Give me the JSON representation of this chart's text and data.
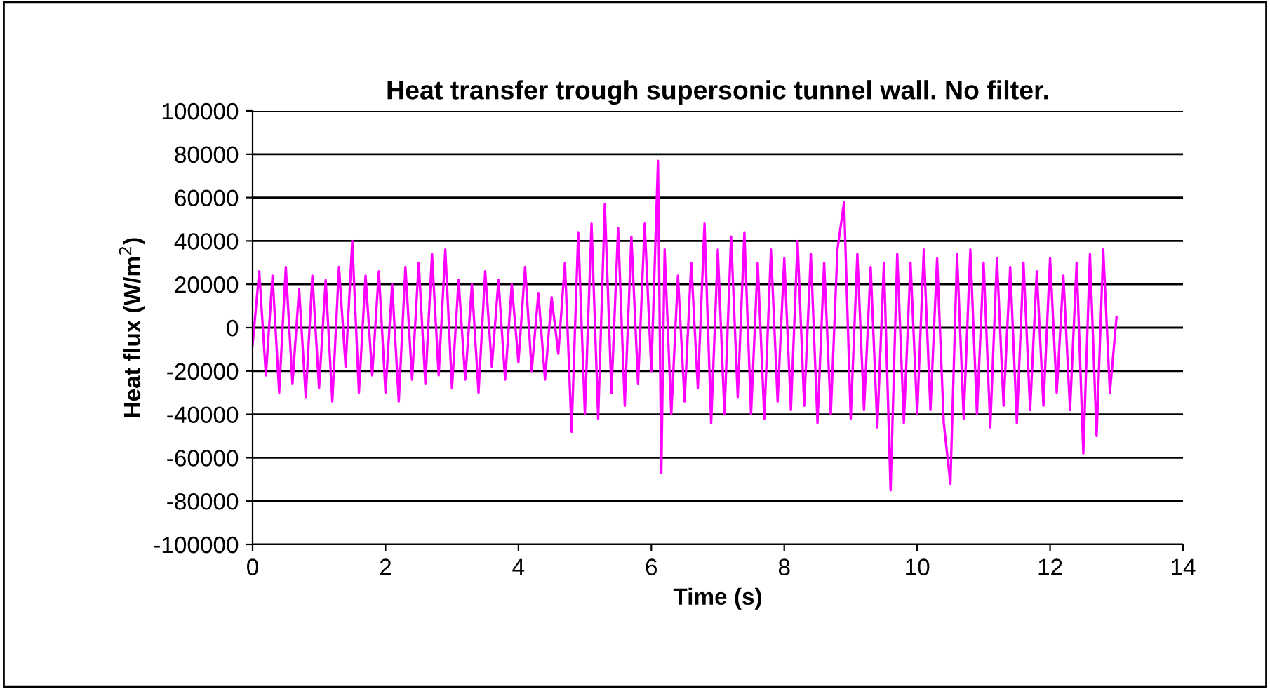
{
  "chart_data": {
    "type": "line",
    "title": "Heat transfer trough supersonic tunnel wall. No filter.",
    "xlabel": "Time (s)",
    "ylabel": "Heat flux (W/m$^{2}$)",
    "x": [
      0,
      0.1,
      0.2,
      0.3,
      0.4,
      0.5,
      0.6,
      0.7,
      0.8,
      0.9,
      1.0,
      1.1,
      1.2,
      1.3,
      1.4,
      1.5,
      1.6,
      1.7,
      1.8,
      1.9,
      2.0,
      2.1,
      2.2,
      2.3,
      2.4,
      2.5,
      2.6,
      2.7,
      2.8,
      2.9,
      3.0,
      3.1,
      3.2,
      3.3,
      3.4,
      3.5,
      3.6,
      3.7,
      3.8,
      3.9,
      4.0,
      4.1,
      4.2,
      4.3,
      4.4,
      4.5,
      4.6,
      4.7,
      4.8,
      4.9,
      5.0,
      5.1,
      5.2,
      5.3,
      5.4,
      5.5,
      5.6,
      5.7,
      5.8,
      5.9,
      6.0,
      6.1,
      6.15,
      6.2,
      6.3,
      6.4,
      6.5,
      6.6,
      6.7,
      6.8,
      6.9,
      7.0,
      7.1,
      7.2,
      7.3,
      7.4,
      7.5,
      7.6,
      7.7,
      7.8,
      7.9,
      8.0,
      8.1,
      8.2,
      8.3,
      8.4,
      8.5,
      8.6,
      8.7,
      8.8,
      8.9,
      9.0,
      9.1,
      9.2,
      9.3,
      9.4,
      9.5,
      9.6,
      9.7,
      9.8,
      9.9,
      10.0,
      10.1,
      10.2,
      10.3,
      10.4,
      10.5,
      10.6,
      10.7,
      10.8,
      10.9,
      11.0,
      11.1,
      11.2,
      11.3,
      11.4,
      11.5,
      11.6,
      11.7,
      11.8,
      11.9,
      12.0,
      12.1,
      12.2,
      12.3,
      12.4,
      12.5,
      12.6,
      12.7,
      12.8,
      12.9,
      13.0
    ],
    "series": [
      {
        "color": "#ff00ff",
        "values": [
          -8000,
          26000,
          -22000,
          24000,
          -30000,
          28000,
          -26000,
          18000,
          -32000,
          24000,
          -28000,
          22000,
          -34000,
          28000,
          -18000,
          40000,
          -30000,
          24000,
          -22000,
          26000,
          -30000,
          20000,
          -34000,
          28000,
          -24000,
          30000,
          -26000,
          34000,
          -22000,
          36000,
          -28000,
          22000,
          -24000,
          20000,
          -30000,
          26000,
          -18000,
          22000,
          -24000,
          20000,
          -16000,
          28000,
          -20000,
          16000,
          -24000,
          14000,
          -12000,
          30000,
          -48000,
          44000,
          -40000,
          48000,
          -42000,
          57000,
          -30000,
          46000,
          -36000,
          42000,
          -26000,
          48000,
          -20000,
          77000,
          -67000,
          36000,
          -40000,
          24000,
          -34000,
          30000,
          -28000,
          48000,
          -44000,
          36000,
          -40000,
          42000,
          -32000,
          44000,
          -40000,
          30000,
          -42000,
          36000,
          -34000,
          32000,
          -38000,
          40000,
          -36000,
          34000,
          -44000,
          30000,
          -40000,
          36000,
          58000,
          -42000,
          34000,
          -38000,
          28000,
          -46000,
          30000,
          -75000,
          34000,
          -44000,
          30000,
          -40000,
          36000,
          -38000,
          32000,
          -44000,
          -72000,
          34000,
          -42000,
          36000,
          -40000,
          30000,
          -46000,
          32000,
          -36000,
          28000,
          -44000,
          30000,
          -38000,
          26000,
          -36000,
          32000,
          -30000,
          24000,
          -38000,
          30000,
          -58000,
          34000,
          -50000,
          36000,
          -30000,
          5000
        ]
      }
    ],
    "xlim": [
      0,
      14
    ],
    "xticks": [
      0,
      2,
      4,
      6,
      8,
      10,
      12,
      14
    ],
    "ylim": [
      -100000,
      100000
    ],
    "yticks": [
      -100000,
      -80000,
      -60000,
      -40000,
      -20000,
      0,
      20000,
      40000,
      60000,
      80000,
      100000
    ],
    "grid": "y",
    "marker": "none",
    "line_style": "solid",
    "legend": false
  }
}
